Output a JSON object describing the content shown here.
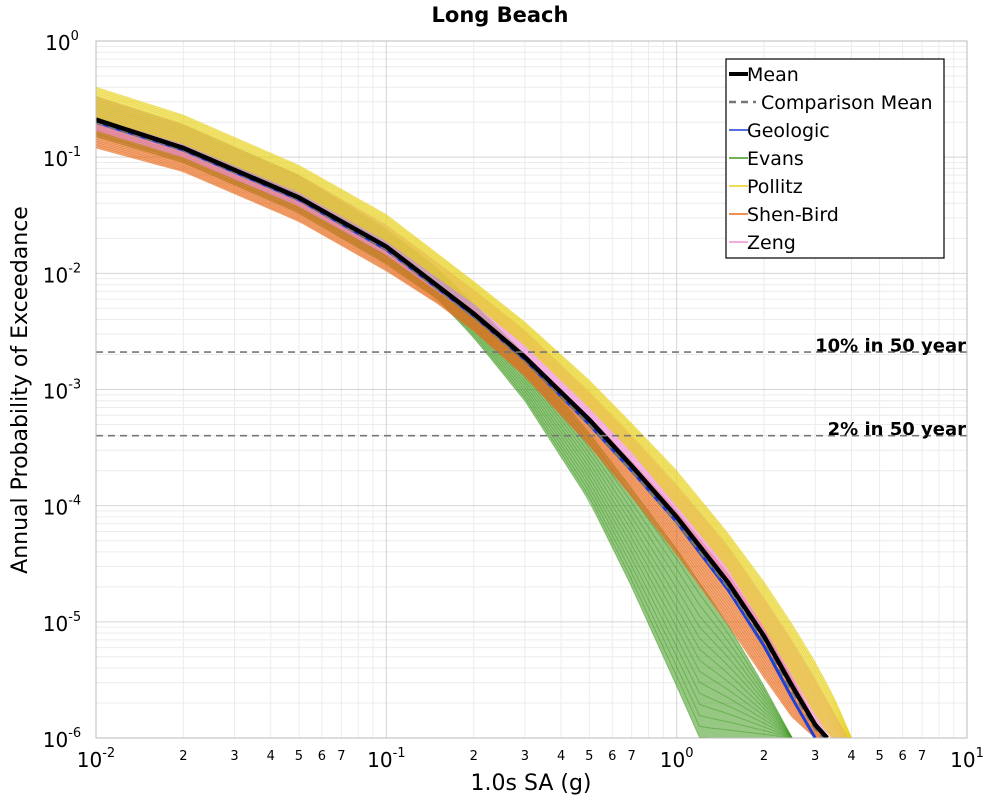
{
  "chart_data": {
    "type": "line",
    "title": "Long Beach",
    "xlabel": "1.0s SA (g)",
    "ylabel": "Annual Probability of Exceedance",
    "x_scale": "log",
    "y_scale": "log",
    "xlim": [
      0.01,
      10
    ],
    "ylim": [
      1e-06,
      1
    ],
    "grid": true,
    "legend_placement": "top-right",
    "x_major_ticks": [
      {
        "value": 0.01,
        "base": "10",
        "exp": "-2"
      },
      {
        "value": 0.1,
        "base": "10",
        "exp": "-1"
      },
      {
        "value": 1,
        "base": "10",
        "exp": "0"
      },
      {
        "value": 10,
        "base": "10",
        "exp": "1"
      }
    ],
    "x_minor_tick_labels": [
      "2",
      "3",
      "4",
      "5",
      "6",
      "7"
    ],
    "y_major_ticks": [
      {
        "value": 1,
        "base": "10",
        "exp": "0"
      },
      {
        "value": 0.1,
        "base": "10",
        "exp": "-1"
      },
      {
        "value": 0.01,
        "base": "10",
        "exp": "-2"
      },
      {
        "value": 0.001,
        "base": "10",
        "exp": "-3"
      },
      {
        "value": 0.0001,
        "base": "10",
        "exp": "-4"
      },
      {
        "value": 1e-05,
        "base": "10",
        "exp": "-5"
      },
      {
        "value": 1e-06,
        "base": "10",
        "exp": "-6"
      }
    ],
    "reference_lines": [
      {
        "label": "10% in 50 year",
        "y": 0.0021,
        "style": "dashed",
        "color": "#777777"
      },
      {
        "label": "2% in 50 year",
        "y": 0.0004,
        "style": "dashed",
        "color": "#777777"
      }
    ],
    "series": [
      {
        "name": "Mean",
        "style": "solid-thick",
        "color": "#000000",
        "x": [
          0.01,
          0.02,
          0.05,
          0.1,
          0.2,
          0.3,
          0.5,
          0.7,
          1.0,
          1.5,
          2.0,
          2.5,
          3.0,
          3.3
        ],
        "y": [
          0.21,
          0.12,
          0.045,
          0.017,
          0.0045,
          0.0019,
          0.00055,
          0.00022,
          8e-05,
          2.2e-05,
          7.5e-06,
          2.8e-06,
          1.3e-06,
          1e-06
        ]
      },
      {
        "name": "Comparison Mean",
        "style": "dashed",
        "color": "#777777",
        "x": [
          0.01,
          0.02,
          0.05,
          0.1,
          0.2,
          0.3,
          0.5,
          0.7,
          1.0,
          1.5,
          2.0,
          2.5,
          3.0,
          3.2
        ],
        "y": [
          0.2,
          0.115,
          0.043,
          0.016,
          0.0042,
          0.0018,
          0.0005,
          0.0002,
          7.2e-05,
          2e-05,
          6.8e-06,
          2.5e-06,
          1.2e-06,
          1e-06
        ]
      },
      {
        "name": "Geologic",
        "color": "#1f3fd6",
        "x": [
          0.01,
          0.02,
          0.05,
          0.1,
          0.2,
          0.3,
          0.5,
          0.7,
          1.0,
          1.5,
          2.0,
          2.5,
          3.0
        ],
        "y": [
          0.2,
          0.115,
          0.043,
          0.016,
          0.0043,
          0.0018,
          0.0005,
          0.0002,
          7.2e-05,
          1.9e-05,
          6.2e-06,
          2.2e-06,
          1e-06
        ]
      },
      {
        "name": "Evans",
        "color": "#3f9a1f",
        "band_lower": {
          "x": [
            0.01,
            0.02,
            0.05,
            0.1,
            0.15,
            0.2,
            0.3,
            0.5,
            0.7,
            1.0,
            1.2
          ],
          "y": [
            0.15,
            0.09,
            0.033,
            0.012,
            0.006,
            0.0028,
            0.0008,
            0.00011,
            2e-05,
            2.8e-06,
            1e-06
          ]
        },
        "band_upper": {
          "x": [
            0.01,
            0.02,
            0.05,
            0.1,
            0.15,
            0.2,
            0.3,
            0.5,
            0.7,
            1.0,
            1.5,
            2.0,
            2.5
          ],
          "y": [
            0.33,
            0.19,
            0.07,
            0.024,
            0.011,
            0.0055,
            0.002,
            0.00042,
            0.00014,
            4.2e-05,
            9.5e-06,
            2.8e-06,
            1e-06
          ]
        }
      },
      {
        "name": "Pollitz",
        "color": "#e8d21a",
        "band_lower": {
          "x": [
            0.01,
            0.02,
            0.05,
            0.1,
            0.2,
            0.3,
            0.5,
            0.7,
            1.0,
            1.5,
            2.0,
            2.5,
            3.0,
            3.4
          ],
          "y": [
            0.22,
            0.13,
            0.05,
            0.019,
            0.0055,
            0.0024,
            0.0007,
            0.00029,
            0.0001,
            2.9e-05,
            9e-06,
            3.5e-06,
            1.6e-06,
            1e-06
          ]
        },
        "band_upper": {
          "x": [
            0.01,
            0.02,
            0.05,
            0.1,
            0.2,
            0.3,
            0.5,
            0.7,
            1.0,
            1.5,
            2.0,
            2.5,
            3.0,
            3.5,
            4.0
          ],
          "y": [
            0.4,
            0.23,
            0.085,
            0.032,
            0.0085,
            0.0038,
            0.0012,
            0.00051,
            0.0002,
            5.8e-05,
            2.2e-05,
            9.5e-06,
            4.5e-06,
            2.2e-06,
            1e-06
          ]
        }
      },
      {
        "name": "Shen-Bird",
        "color": "#e86a1a",
        "band_lower": {
          "x": [
            0.01,
            0.02,
            0.05,
            0.1,
            0.15,
            0.2,
            0.3,
            0.5,
            0.7,
            1.0,
            1.5,
            2.0,
            2.5,
            3.0
          ],
          "y": [
            0.12,
            0.075,
            0.028,
            0.0105,
            0.0055,
            0.0032,
            0.0013,
            0.00033,
            0.00012,
            3.8e-05,
            9.5e-06,
            3.3e-06,
            1.5e-06,
            1e-06
          ]
        },
        "band_upper": {
          "x": [
            0.01,
            0.02,
            0.05,
            0.1,
            0.2,
            0.3,
            0.5,
            0.7,
            1.0,
            1.5,
            2.0,
            2.5,
            3.0,
            3.3
          ],
          "y": [
            0.2,
            0.12,
            0.045,
            0.017,
            0.0048,
            0.002,
            0.00058,
            0.00024,
            9e-05,
            2.6e-05,
            8.8e-06,
            3.3e-06,
            1.4e-06,
            1e-06
          ]
        }
      },
      {
        "name": "Zeng",
        "color": "#f08fd8",
        "band_lower": {
          "x": [
            0.01,
            0.02,
            0.05,
            0.1,
            0.2,
            0.3,
            0.5,
            0.7,
            1.0,
            1.5,
            2.0,
            2.5,
            3.0,
            3.4
          ],
          "y": [
            0.17,
            0.1,
            0.038,
            0.0145,
            0.0042,
            0.0018,
            0.00052,
            0.00021,
            7.7e-05,
            2.2e-05,
            7.5e-06,
            3e-06,
            1.4e-06,
            1e-06
          ]
        },
        "band_upper": {
          "x": [
            0.01,
            0.02,
            0.05,
            0.1,
            0.2,
            0.3,
            0.5,
            0.7,
            1.0,
            1.5,
            2.0,
            2.5,
            3.0,
            3.5,
            3.9
          ],
          "y": [
            0.33,
            0.19,
            0.07,
            0.026,
            0.0072,
            0.0032,
            0.00095,
            0.0004,
            0.00015,
            4.5e-05,
            1.6e-05,
            6.8e-06,
            3.2e-06,
            1.6e-06,
            1e-06
          ]
        }
      }
    ]
  }
}
